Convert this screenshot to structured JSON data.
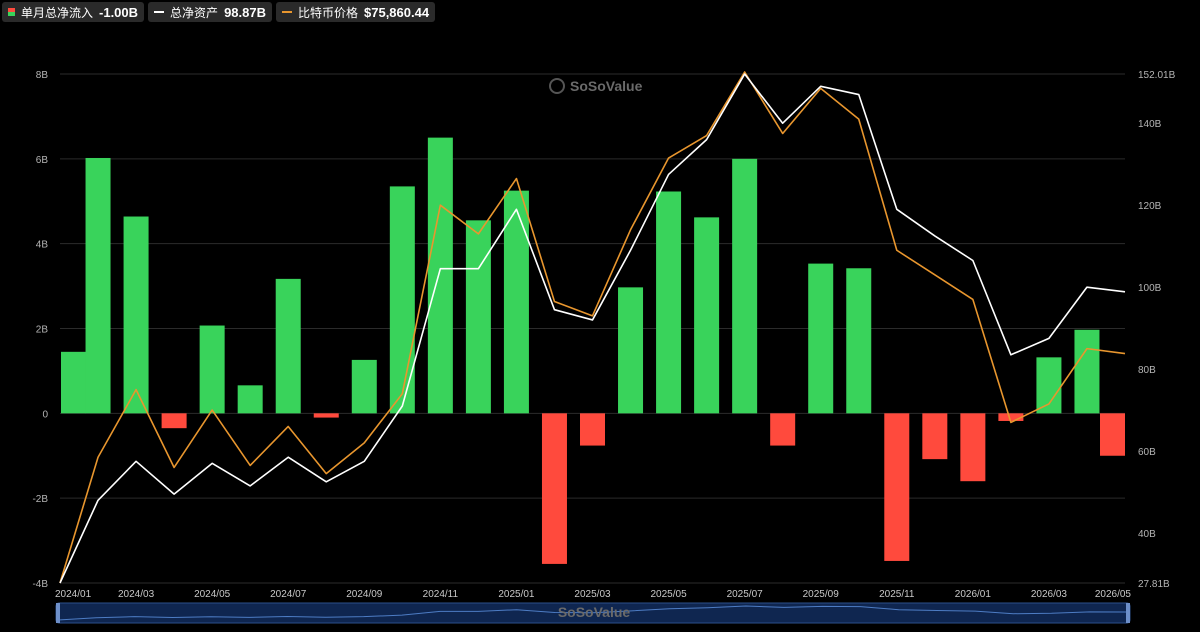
{
  "legend": [
    {
      "label": "单月总净流入",
      "value": "-1.00B",
      "swatch": "bar"
    },
    {
      "label": "总净资产",
      "value": "98.87B",
      "color": "#ffffff",
      "swatch": "line"
    },
    {
      "label": "比特币价格",
      "value": "$75,860.44",
      "color": "#e8962e",
      "swatch": "line"
    }
  ],
  "watermark": "SoSoValue",
  "chart_data": {
    "type": "bar",
    "categories": [
      "2024/01",
      "2024/02",
      "2024/03",
      "2024/04",
      "2024/05",
      "2024/06",
      "2024/07",
      "2024/08",
      "2024/09",
      "2024/10",
      "2024/11",
      "2024/12",
      "2025/01",
      "2025/02",
      "2025/03",
      "2025/04",
      "2025/05",
      "2025/06",
      "2025/07",
      "2025/08",
      "2025/09",
      "2025/10",
      "2025/11",
      "2025/12",
      "2026/01",
      "2026/02",
      "2026/03",
      "2026/04",
      "2026/05"
    ],
    "x_tick_labels": [
      "2024/01",
      "2024/03",
      "2024/05",
      "2024/07",
      "2024/09",
      "2024/11",
      "2025/01",
      "2025/03",
      "2025/05",
      "2025/07",
      "2025/09",
      "2025/11",
      "2026/01",
      "2026/03",
      "2026/05"
    ],
    "y_left": {
      "ticks": [
        "8B",
        "6B",
        "4B",
        "2B",
        "0",
        "-2B",
        "-4B"
      ],
      "range": [
        -4,
        8
      ]
    },
    "y_right": {
      "ticks": [
        "152.01B",
        "140B",
        "120B",
        "100B",
        "80B",
        "60B",
        "40B",
        "27.81B"
      ],
      "range": [
        27.81,
        152.01
      ]
    },
    "grid": true,
    "legend_position": "top-left",
    "colors": {
      "positive": "#39d35b",
      "negative": "#ff4a3d",
      "net_assets": "#ffffff",
      "btc_price": "#e8962e"
    },
    "series": [
      {
        "name": "单月总净流入",
        "axis": "left",
        "kind": "bar",
        "values": [
          1.45,
          6.02,
          4.64,
          -0.35,
          2.07,
          0.66,
          3.17,
          -0.1,
          1.26,
          5.35,
          6.5,
          4.55,
          5.25,
          -3.55,
          -0.76,
          2.97,
          5.23,
          4.62,
          6.0,
          -0.76,
          3.53,
          3.42,
          -3.48,
          -1.08,
          -1.6,
          -0.18,
          1.32,
          1.97,
          -1.0
        ]
      },
      {
        "name": "总净资产",
        "axis": "right",
        "kind": "line",
        "values": [
          27.81,
          48,
          57.5,
          49.5,
          57,
          51.5,
          58.5,
          52.5,
          57.5,
          71,
          104.5,
          104.5,
          119,
          94.5,
          92,
          109,
          127.5,
          136,
          152,
          140,
          149,
          147,
          119,
          112.5,
          106.5,
          83.5,
          87.5,
          100,
          98.87
        ]
      },
      {
        "name": "比特币价格",
        "axis": "right",
        "kind": "line",
        "values": [
          27.81,
          58.5,
          75,
          56,
          70,
          56.5,
          66,
          54.5,
          62,
          74,
          120,
          113,
          126.5,
          96.5,
          93,
          114,
          131.5,
          137,
          152.5,
          137.5,
          148.5,
          141,
          109,
          103,
          97,
          67,
          71.5,
          85,
          83.8
        ]
      }
    ]
  }
}
